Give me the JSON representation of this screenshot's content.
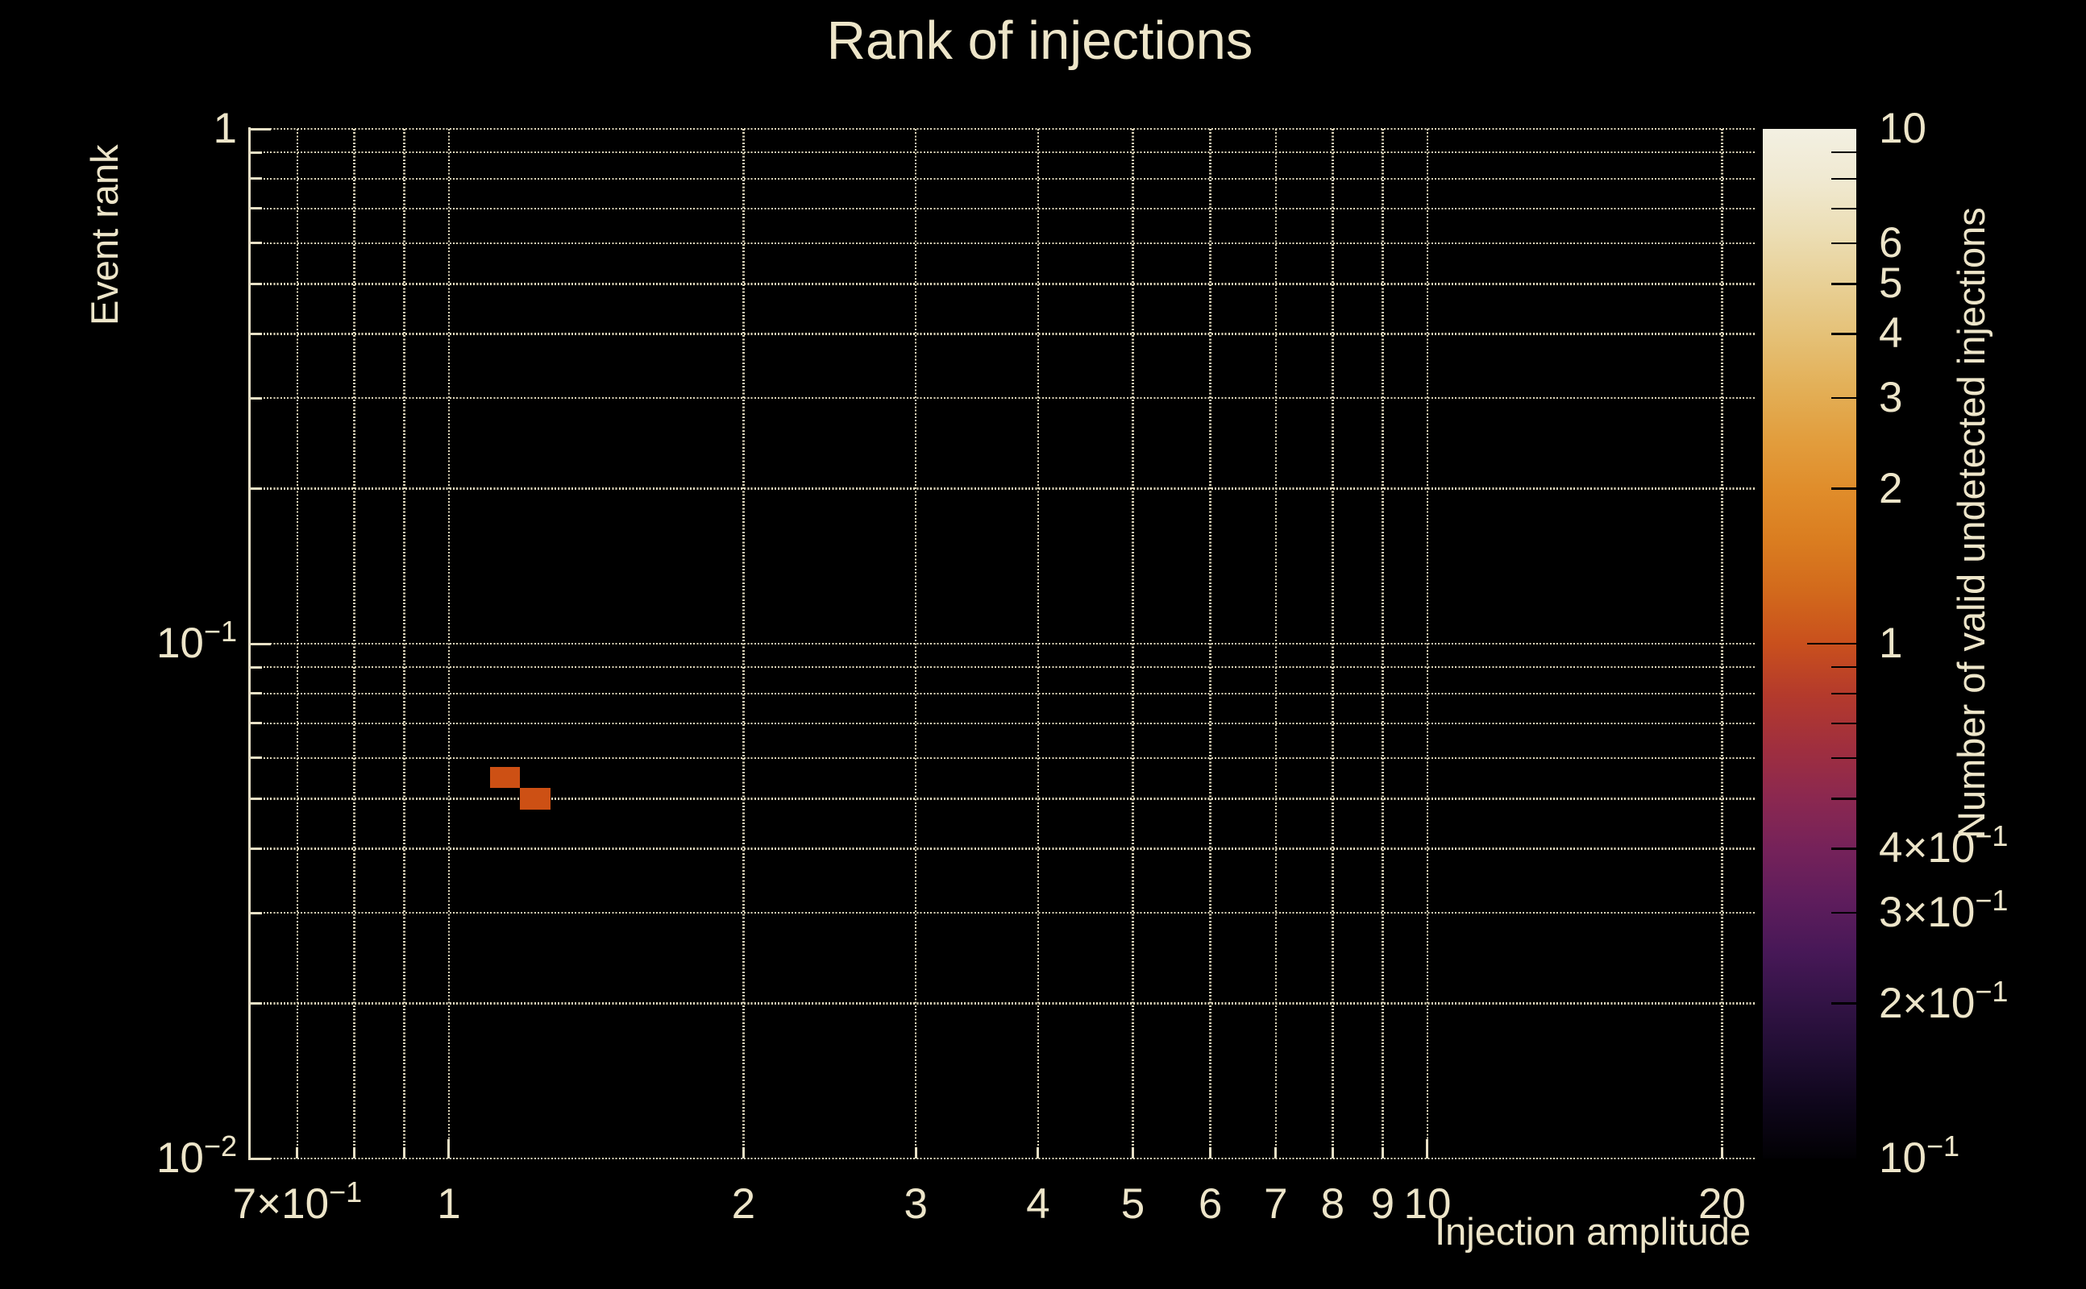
{
  "chart_data": {
    "type": "heatmap",
    "title": "Rank of injections",
    "grid": true,
    "legend_position": "right-colorbar",
    "x_axis": {
      "title": "Injection amplitude",
      "scale": "log",
      "range": [
        0.626,
        21.6
      ],
      "ticks": [
        {
          "v": 0.7,
          "t": "7×10",
          "e": "−1"
        },
        {
          "v": 0.8
        },
        {
          "v": 0.9
        },
        {
          "v": 1,
          "t": "1",
          "major": true
        },
        {
          "v": 2,
          "t": "2"
        },
        {
          "v": 3,
          "t": "3"
        },
        {
          "v": 4,
          "t": "4"
        },
        {
          "v": 5,
          "t": "5"
        },
        {
          "v": 6,
          "t": "6"
        },
        {
          "v": 7,
          "t": "7"
        },
        {
          "v": 8,
          "t": "8"
        },
        {
          "v": 9,
          "t": "9"
        },
        {
          "v": 10,
          "t": "10",
          "major": true
        },
        {
          "v": 20,
          "t": "20"
        }
      ]
    },
    "y_axis": {
      "title": "Event rank",
      "scale": "log",
      "range": [
        0.01,
        1
      ],
      "ticks": [
        {
          "v": 1,
          "t": "1",
          "major": true
        },
        {
          "v": 0.9
        },
        {
          "v": 0.8
        },
        {
          "v": 0.7
        },
        {
          "v": 0.6
        },
        {
          "v": 0.5
        },
        {
          "v": 0.4
        },
        {
          "v": 0.3
        },
        {
          "v": 0.2
        },
        {
          "v": 0.1,
          "t": "10",
          "e": "−1",
          "major": true
        },
        {
          "v": 0.09
        },
        {
          "v": 0.08
        },
        {
          "v": 0.07
        },
        {
          "v": 0.06
        },
        {
          "v": 0.05
        },
        {
          "v": 0.04
        },
        {
          "v": 0.03
        },
        {
          "v": 0.02
        },
        {
          "v": 0.01,
          "t": "10",
          "e": "−2",
          "major": true
        }
      ]
    },
    "colorbar": {
      "title": "Number of valid undetected injections",
      "scale": "log",
      "range": [
        0.1,
        10
      ],
      "ticks": [
        {
          "v": 10,
          "t": "10",
          "edge": true
        },
        {
          "v": 9
        },
        {
          "v": 8
        },
        {
          "v": 7
        },
        {
          "v": 6,
          "t": "6"
        },
        {
          "v": 5,
          "t": "5"
        },
        {
          "v": 4,
          "t": "4"
        },
        {
          "v": 3,
          "t": "3"
        },
        {
          "v": 2,
          "t": "2"
        },
        {
          "v": 1,
          "t": "1",
          "major": true
        },
        {
          "v": 0.9
        },
        {
          "v": 0.8
        },
        {
          "v": 0.7
        },
        {
          "v": 0.6
        },
        {
          "v": 0.5
        },
        {
          "v": 0.4,
          "t": "4×10",
          "e": "−1"
        },
        {
          "v": 0.3,
          "t": "3×10",
          "e": "−1"
        },
        {
          "v": 0.2,
          "t": "2×10",
          "e": "−1"
        },
        {
          "v": 0.1,
          "t": "10",
          "e": "−1",
          "edge": true
        }
      ],
      "gradient_stops": [
        [
          0.0,
          "#020104"
        ],
        [
          0.05,
          "#0e061a"
        ],
        [
          0.1,
          "#1f0d31"
        ],
        [
          0.15,
          "#321345"
        ],
        [
          0.2,
          "#471857"
        ],
        [
          0.25,
          "#5e1d5c"
        ],
        [
          0.3,
          "#75225a"
        ],
        [
          0.35,
          "#8b2850"
        ],
        [
          0.4,
          "#a02f3e"
        ],
        [
          0.45,
          "#b43a2c"
        ],
        [
          0.5,
          "#c9501d"
        ],
        [
          0.55,
          "#d2691c"
        ],
        [
          0.6,
          "#da7d20"
        ],
        [
          0.65,
          "#e08d2b"
        ],
        [
          0.7,
          "#e29e3e"
        ],
        [
          0.75,
          "#e3b058"
        ],
        [
          0.8,
          "#e5c177"
        ],
        [
          0.85,
          "#e8d096"
        ],
        [
          0.9,
          "#ecdeb5"
        ],
        [
          0.95,
          "#f0e9d1"
        ],
        [
          1.0,
          "#f3f0e2"
        ]
      ]
    },
    "cells": [
      {
        "x_min": 1.101,
        "x_max": 1.182,
        "y_min": 0.0524,
        "y_max": 0.0577,
        "value": 1,
        "color": "#cd5014"
      },
      {
        "x_min": 1.182,
        "x_max": 1.27,
        "y_min": 0.0476,
        "y_max": 0.0524,
        "value": 1,
        "color": "#cd5014"
      }
    ]
  },
  "colors": {
    "background": "#000000",
    "text": "#EDE5C9",
    "grid": "#DCD4B8",
    "axis": "#E8E0C6",
    "colorbar_tick": "#000000"
  }
}
